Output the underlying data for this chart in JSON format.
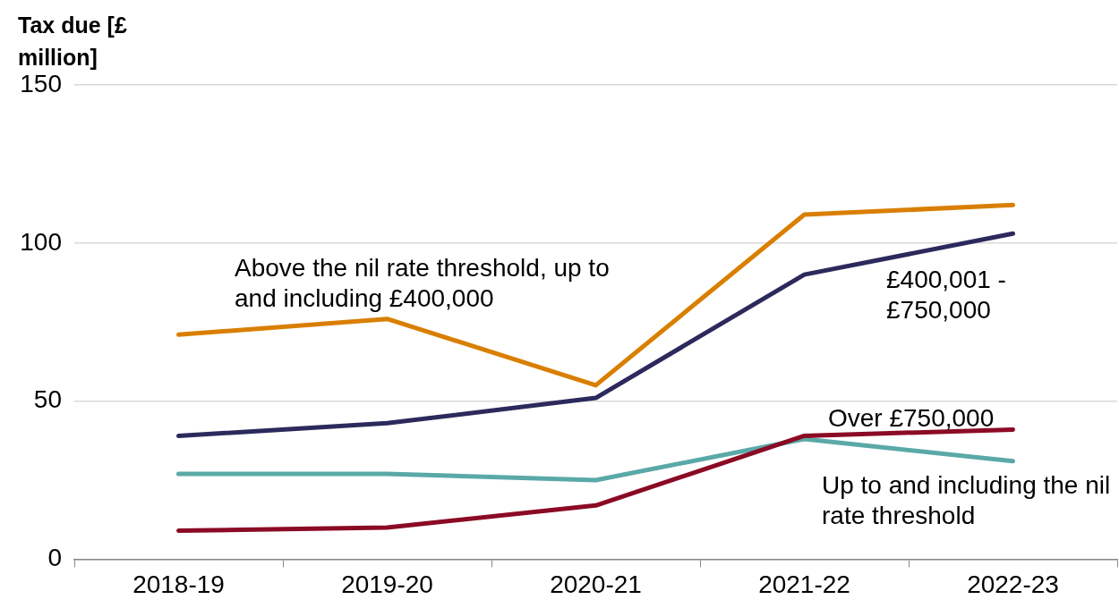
{
  "chart_data": {
    "type": "line",
    "ylabel": "Tax due [£ million]",
    "categories": [
      "2018-19",
      "2019-20",
      "2020-21",
      "2021-22",
      "2022-23"
    ],
    "series": [
      {
        "name": "Above the nil rate threshold, up to and including £400,000",
        "color": "#d97f00",
        "values": [
          71,
          76,
          55,
          109,
          112
        ]
      },
      {
        "name": "£400,001 - £750,000",
        "color": "#2c2a5c",
        "values": [
          39,
          43,
          51,
          90,
          103
        ]
      },
      {
        "name": "Over £750,000",
        "color": "#8b0a24",
        "values": [
          9,
          10,
          17,
          39,
          41
        ]
      },
      {
        "name": "Up to and including the nil rate threshold",
        "color": "#5aa9a8",
        "values": [
          27,
          27,
          25,
          38,
          31
        ]
      }
    ],
    "ylim": [
      0,
      150
    ],
    "yticks": [
      0,
      50,
      100,
      150
    ],
    "grid": "y",
    "legend": false,
    "marker": "none",
    "line_style": "solid"
  }
}
